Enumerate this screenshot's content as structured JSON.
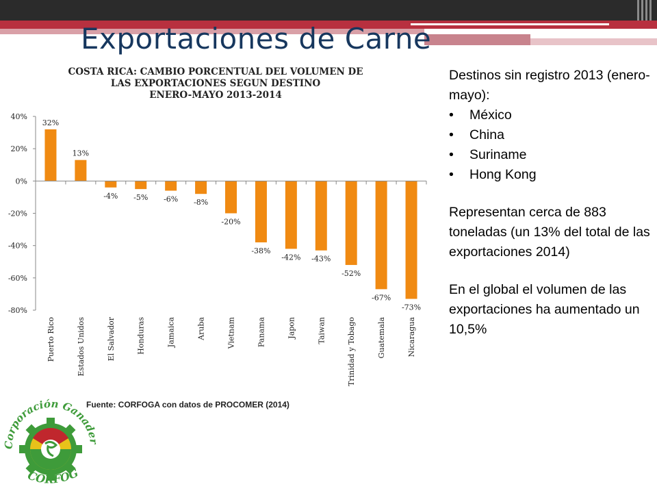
{
  "slide": {
    "title": "Exportaciones de Carne"
  },
  "chart_data": {
    "type": "bar",
    "title_lines": [
      "COSTA RICA: CAMBIO PORCENTUAL DEL VOLUMEN DE",
      "LAS EXPORTACIONES SEGUN DESTINO",
      "ENERO-MAYO 2013-2014"
    ],
    "categories": [
      "Puerto Rico",
      "Estados Unidos",
      "El Salvador",
      "Honduras",
      "Jamaica",
      "Aruba",
      "Vietnam",
      "Panama",
      "Japon",
      "Taiwan",
      "Trinidad y Tobago",
      "Guatemala",
      "Nicaragua"
    ],
    "values": [
      32,
      13,
      -4,
      -5,
      -6,
      -8,
      -20,
      -38,
      -42,
      -43,
      -52,
      -67,
      -73
    ],
    "value_labels": [
      "32%",
      "13%",
      "-4%",
      "-5%",
      "-6%",
      "-8%",
      "-20%",
      "-38%",
      "-42%",
      "-43%",
      "-52%",
      "-67%",
      "-73%"
    ],
    "ylim": [
      -80,
      40
    ],
    "yticks": [
      40,
      20,
      0,
      -20,
      -40,
      -60,
      -80
    ],
    "ytick_labels": [
      "40%",
      "20%",
      "0%",
      "-20%",
      "-40%",
      "-60%",
      "-80%"
    ],
    "bar_color": "#f08a12",
    "grid": false
  },
  "source_note": "Fuente: CORFOGA con datos de PROCOMER (2014)",
  "side_panel": {
    "heading": "Destinos sin registro 2013 (enero-mayo):",
    "destinations": [
      "México",
      "China",
      "Suriname",
      "Hong Kong"
    ],
    "paragraph1": "Representan cerca de 883 toneladas (un 13% del total de las exportaciones 2014)",
    "paragraph2": "En el global el volumen de las exportaciones ha aumentado un 10,5%"
  },
  "logo": {
    "upper_text": "Corporación Ganadera",
    "lower_text": "CORFOGA",
    "colors": {
      "green": "#3e9b3a",
      "yellow": "#e8c21a",
      "red": "#c0272d",
      "gear": "#3e9b3a"
    }
  }
}
